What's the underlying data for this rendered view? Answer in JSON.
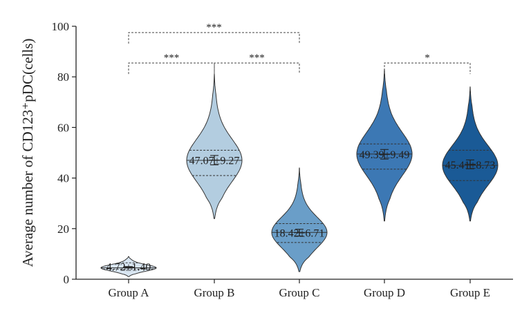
{
  "chart_data": {
    "type": "violin",
    "ylabel": "Average number of CD123⁺pDC(cells)",
    "ylim": [
      0,
      100
    ],
    "yticks": [
      0,
      20,
      40,
      60,
      80,
      100
    ],
    "categories": [
      "Group A",
      "Group B",
      "Group C",
      "Group D",
      "Group E"
    ],
    "groups": [
      {
        "name": "Group A",
        "mean": 4.72,
        "sd": 1.4,
        "label": "4.72±1.40",
        "median": 4.5,
        "q1": 4.0,
        "q3": 6.5,
        "min": 1,
        "max": 9,
        "color": "#d9e6f2"
      },
      {
        "name": "Group B",
        "mean": 47.07,
        "sd": 9.27,
        "label": "47.07±9.27",
        "median": 47,
        "q1": 41,
        "q3": 51,
        "min": 24,
        "max": 81,
        "color": "#b3cde0"
      },
      {
        "name": "Group C",
        "mean": 18.42,
        "sd": 6.71,
        "label": "18.42±6.71",
        "median": 18.5,
        "q1": 14.5,
        "q3": 22,
        "min": 3,
        "max": 44,
        "color": "#6a9ec8"
      },
      {
        "name": "Group D",
        "mean": 49.39,
        "sd": 9.49,
        "label": "49.39±9.49",
        "median": 49.5,
        "q1": 43.5,
        "q3": 53.5,
        "min": 23,
        "max": 83,
        "color": "#3c78b4"
      },
      {
        "name": "Group E",
        "mean": 45.41,
        "sd": 8.73,
        "label": "45.41±8.73",
        "median": 45,
        "q1": 39,
        "q3": 51,
        "min": 23,
        "max": 76,
        "color": "#1a5a96"
      }
    ],
    "significance": [
      {
        "from": "Group A",
        "to": "Group C",
        "label": "***",
        "y": 97.5
      },
      {
        "from": "Group A",
        "to": "Group B",
        "label": "***",
        "y": 85.5
      },
      {
        "from": "Group B",
        "to": "Group C",
        "label": "***",
        "y": 85.5
      },
      {
        "from": "Group D",
        "to": "Group E",
        "label": "*",
        "y": 85.5
      }
    ],
    "grid": false
  }
}
